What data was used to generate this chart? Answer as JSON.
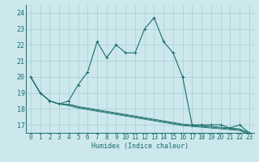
{
  "xlabel": "Humidex (Indice chaleur)",
  "bg_color": "#cce8ec",
  "grid_color": "#aacdd4",
  "line_color": "#1a6e6a",
  "x_values": [
    0,
    1,
    2,
    3,
    4,
    5,
    6,
    7,
    8,
    9,
    10,
    11,
    12,
    13,
    14,
    15,
    16,
    17,
    18,
    19,
    20,
    21,
    22,
    23
  ],
  "series": [
    [
      20.0,
      19.0,
      18.5,
      18.3,
      18.5,
      19.5,
      20.3,
      22.2,
      21.2,
      22.0,
      21.5,
      21.5,
      23.0,
      23.7,
      22.2,
      21.5,
      20.0,
      17.0,
      17.0,
      17.0,
      17.0,
      16.8,
      17.0,
      16.5
    ],
    [
      20.0,
      19.0,
      18.5,
      18.3,
      18.3,
      18.15,
      18.05,
      17.95,
      17.85,
      17.75,
      17.65,
      17.55,
      17.45,
      17.35,
      17.25,
      17.15,
      17.05,
      17.0,
      16.95,
      16.9,
      16.85,
      16.8,
      16.75,
      16.5
    ],
    [
      20.0,
      19.0,
      18.5,
      18.3,
      18.25,
      18.1,
      18.0,
      17.9,
      17.8,
      17.7,
      17.6,
      17.5,
      17.4,
      17.3,
      17.2,
      17.1,
      17.0,
      16.95,
      16.9,
      16.85,
      16.8,
      16.75,
      16.7,
      16.45
    ],
    [
      20.0,
      19.0,
      18.5,
      18.3,
      18.2,
      18.05,
      17.95,
      17.85,
      17.75,
      17.65,
      17.55,
      17.45,
      17.35,
      17.25,
      17.15,
      17.05,
      16.95,
      16.9,
      16.85,
      16.8,
      16.75,
      16.7,
      16.65,
      16.4
    ]
  ],
  "ylim": [
    16.5,
    24.5
  ],
  "yticks": [
    17,
    18,
    19,
    20,
    21,
    22,
    23,
    24
  ],
  "xticks": [
    0,
    1,
    2,
    3,
    4,
    5,
    6,
    7,
    8,
    9,
    10,
    11,
    12,
    13,
    14,
    15,
    16,
    17,
    18,
    19,
    20,
    21,
    22,
    23
  ],
  "tick_fontsize": 5.5,
  "xlabel_fontsize": 6.0
}
